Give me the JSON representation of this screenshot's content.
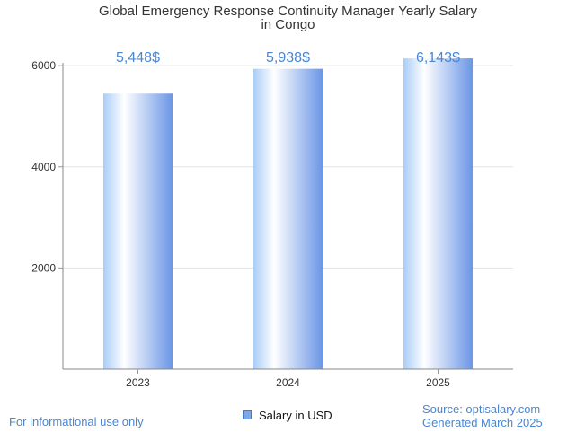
{
  "chart_data": {
    "type": "bar",
    "title_line1": "Global Emergency Response Continuity Manager Yearly Salary",
    "title_line2": "in Congo",
    "categories": [
      "2023",
      "2024",
      "2025"
    ],
    "series": [
      {
        "name": "Salary in USD",
        "values": [
          5448,
          5938,
          6143
        ],
        "labels": [
          "5,448$",
          "5,938$",
          "6,143$"
        ]
      }
    ],
    "y_ticks": [
      2000,
      4000,
      6000
    ],
    "ylim": [
      0,
      6500
    ],
    "grid": true,
    "legend_position": "bottom"
  },
  "footer": {
    "note": "For informational use only",
    "source": "Source: optisalary.com",
    "generated": "Generated March 2025"
  },
  "colors": {
    "bar_light": "#ffffff",
    "bar_mid": "#a9cdf7",
    "bar_dark": "#6b96e6",
    "value_label": "#4a86d4"
  }
}
